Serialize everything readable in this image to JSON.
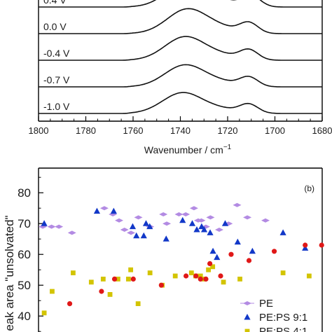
{
  "chart_data": [
    {
      "type": "line",
      "panel": "top",
      "xlabel": "Wavenumber / cm",
      "xlabel_sup": "−1",
      "xlim": [
        1800,
        1680
      ],
      "xticks": [
        1800,
        1780,
        1760,
        1740,
        1720,
        1700,
        1680
      ],
      "yticks": [],
      "grid": false,
      "series": [
        {
          "name": "-1.0 V",
          "offset": 0,
          "peak_height": 0.78,
          "peak_x": 1739,
          "shoulder_x": 1711
        },
        {
          "name": "-0.7 V",
          "offset": 1,
          "peak_height": 0.82,
          "peak_x": 1738,
          "shoulder_x": 1711
        },
        {
          "name": "-0.4 V",
          "offset": 2,
          "peak_height": 0.88,
          "peak_x": 1738,
          "shoulder_x": 1711
        },
        {
          "name": "0.0 V",
          "offset": 3,
          "peak_height": 0.92,
          "peak_x": 1737,
          "shoulder_x": 1711
        },
        {
          "name": "0.4 V",
          "offset": 4,
          "peak_height": 0.95,
          "peak_x": 1737,
          "shoulder_x": 1710
        }
      ]
    },
    {
      "type": "scatter",
      "panel": "bottom",
      "panel_label": "(b)",
      "ylabel": "eak area \"unsolvated\"",
      "ylim": [
        33,
        88
      ],
      "yticks": [
        40,
        50,
        60,
        70,
        80
      ],
      "grid": false,
      "legend_position": "bottom-right",
      "series": [
        {
          "name": "PE",
          "marker": "diamond",
          "color": "#b38be3",
          "x": [
            0.015,
            0.046,
            0.072,
            0.118,
            0.232,
            0.262,
            0.284,
            0.303,
            0.326,
            0.352,
            0.393,
            0.44,
            0.452,
            0.495,
            0.519,
            0.548,
            0.563,
            0.574,
            0.59,
            0.606,
            0.637,
            0.67,
            0.7,
            0.736,
            0.8
          ],
          "y": [
            69,
            69,
            69,
            67,
            75,
            73,
            71,
            68,
            67,
            72,
            69,
            73,
            70,
            73,
            73,
            75,
            71,
            71,
            69,
            72,
            68,
            70,
            76,
            72,
            71
          ]
        },
        {
          "name": "PE:PS 9:1",
          "marker": "triangle",
          "color": "#1238c8",
          "x": [
            0.02,
            0.206,
            0.265,
            0.332,
            0.345,
            0.371,
            0.379,
            0.392,
            0.45,
            0.508,
            0.542,
            0.558,
            0.575,
            0.584,
            0.605,
            0.615,
            0.629,
            0.658,
            0.702,
            0.754,
            0.862,
            0.94
          ],
          "y": [
            70,
            74,
            74,
            69,
            66,
            66,
            70,
            69,
            65,
            71,
            70,
            68,
            69,
            68,
            67,
            61,
            59,
            70,
            64,
            61,
            67,
            62
          ]
        },
        {
          "name": "PE:PS 4:1",
          "marker": "square",
          "color": "#d3c400",
          "x": [
            0.02,
            0.048,
            0.122,
            0.186,
            0.228,
            0.252,
            0.28,
            0.317,
            0.325,
            0.351,
            0.393,
            0.436,
            0.482,
            0.539,
            0.554,
            0.571,
            0.584,
            0.599,
            0.614,
            0.652,
            0.71,
            0.862,
            0.954
          ],
          "y": [
            41,
            48,
            54,
            51,
            52,
            47,
            52,
            52,
            55,
            44,
            54,
            50,
            53,
            54,
            53,
            53,
            52,
            55,
            56,
            51,
            52,
            54,
            53
          ]
        },
        {
          "name": "",
          "marker": "circle",
          "color": "#e01818",
          "x": [
            0.11,
            0.222,
            0.268,
            0.334,
            0.433,
            0.52,
            0.555,
            0.571,
            0.59,
            0.604,
            0.642,
            0.679,
            0.742,
            0.831,
            0.94,
            0.998
          ],
          "y": [
            44,
            48,
            52,
            52,
            50,
            53,
            53,
            52,
            52,
            57,
            53,
            60,
            58,
            61,
            63,
            63
          ]
        }
      ],
      "legend_entries": [
        "PE",
        "PE:PS 9:1",
        "PE:PS 4:1"
      ]
    }
  ]
}
